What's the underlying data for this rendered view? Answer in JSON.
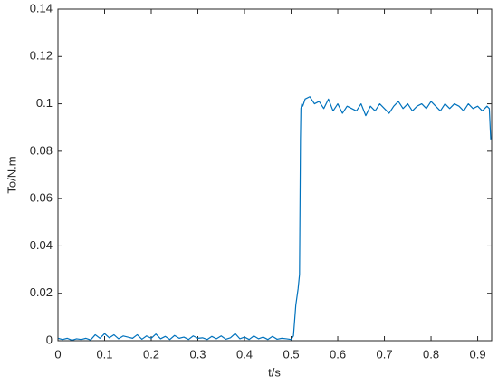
{
  "chart_data": {
    "type": "line",
    "x_label": "t/s",
    "y_label": "To/N.m",
    "color": "#0072bd",
    "xlim": [
      0,
      0.93
    ],
    "ylim": [
      0,
      0.14
    ],
    "xticks": [
      0,
      0.1,
      0.2,
      0.3,
      0.4,
      0.5,
      0.6,
      0.7,
      0.8,
      0.9
    ],
    "yticks": [
      0,
      0.02,
      0.04,
      0.06,
      0.08,
      0.1,
      0.12,
      0.14
    ],
    "x": [
      0,
      0.01,
      0.02,
      0.03,
      0.04,
      0.05,
      0.06,
      0.07,
      0.08,
      0.09,
      0.1,
      0.11,
      0.12,
      0.13,
      0.14,
      0.15,
      0.16,
      0.17,
      0.18,
      0.19,
      0.2,
      0.21,
      0.22,
      0.23,
      0.24,
      0.25,
      0.26,
      0.27,
      0.28,
      0.29,
      0.3,
      0.31,
      0.32,
      0.33,
      0.34,
      0.35,
      0.36,
      0.37,
      0.38,
      0.39,
      0.4,
      0.41,
      0.42,
      0.43,
      0.44,
      0.45,
      0.46,
      0.47,
      0.48,
      0.49,
      0.5,
      0.505,
      0.51,
      0.515,
      0.518,
      0.52,
      0.521,
      0.523,
      0.525,
      0.53,
      0.54,
      0.55,
      0.56,
      0.57,
      0.58,
      0.59,
      0.6,
      0.61,
      0.62,
      0.63,
      0.64,
      0.65,
      0.66,
      0.67,
      0.68,
      0.69,
      0.7,
      0.71,
      0.72,
      0.73,
      0.74,
      0.75,
      0.76,
      0.77,
      0.78,
      0.79,
      0.8,
      0.81,
      0.82,
      0.83,
      0.84,
      0.85,
      0.86,
      0.87,
      0.88,
      0.89,
      0.9,
      0.91,
      0.92,
      0.925,
      0.928
    ],
    "values": [
      0.001,
      0.0005,
      0.001,
      0.0002,
      0.0008,
      0.0005,
      0.001,
      0.0003,
      0.0025,
      0.001,
      0.003,
      0.0012,
      0.0025,
      0.0008,
      0.002,
      0.0015,
      0.001,
      0.0025,
      0.0006,
      0.002,
      0.001,
      0.0028,
      0.0008,
      0.0018,
      0.0005,
      0.0022,
      0.001,
      0.0015,
      0.0005,
      0.002,
      0.001,
      0.0012,
      0.0005,
      0.0018,
      0.0008,
      0.002,
      0.0006,
      0.0012,
      0.003,
      0.0008,
      0.0015,
      0.0005,
      0.002,
      0.0008,
      0.0015,
      0.0005,
      0.0018,
      0.0006,
      0.001,
      0.0008,
      0.0005,
      0.002,
      0.015,
      0.022,
      0.028,
      0.085,
      0.098,
      0.1,
      0.099,
      0.102,
      0.103,
      0.1,
      0.101,
      0.098,
      0.102,
      0.097,
      0.1,
      0.096,
      0.099,
      0.098,
      0.097,
      0.1,
      0.095,
      0.099,
      0.097,
      0.1,
      0.098,
      0.096,
      0.099,
      0.101,
      0.098,
      0.1,
      0.097,
      0.099,
      0.1,
      0.098,
      0.101,
      0.099,
      0.097,
      0.1,
      0.098,
      0.1,
      0.099,
      0.097,
      0.1,
      0.098,
      0.099,
      0.097,
      0.099,
      0.098,
      0.085
    ]
  }
}
